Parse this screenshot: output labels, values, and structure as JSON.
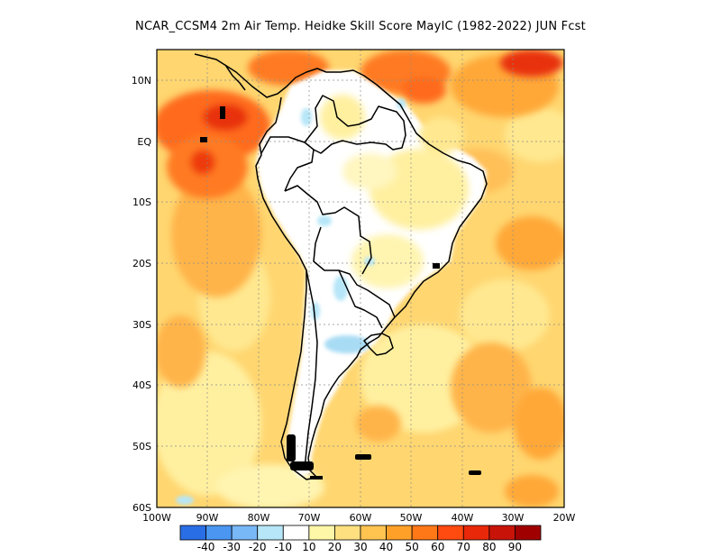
{
  "title": "NCAR_CCSM4  2m Air Temp. Heidke Skill Score MayIC (1982-2022) JUN Fcst",
  "lat_labels": [
    "10N",
    "EQ",
    "10S",
    "20S",
    "30S",
    "40S",
    "50S",
    "60S"
  ],
  "lon_labels": [
    "100W",
    "90W",
    "80W",
    "70W",
    "60W",
    "50W",
    "40W",
    "30W",
    "20W"
  ],
  "colorbar": {
    "colors": [
      "#2a6ee6",
      "#4a96f0",
      "#78b8f6",
      "#b6e6f8",
      "#ffffff",
      "#fff7a8",
      "#ffe080",
      "#ffc450",
      "#ffa028",
      "#ff7818",
      "#ff4a10",
      "#e82808",
      "#c81408",
      "#a00000"
    ],
    "labels": [
      "-40",
      "-30",
      "-20",
      "-10",
      "10",
      "20",
      "30",
      "40",
      "50",
      "60",
      "70",
      "80",
      "90"
    ]
  },
  "colors": {
    "warm_light": "#ffe27c",
    "warm_mid": "#ffb84a",
    "warm_dark": "#ff7a22",
    "hot": "#ee3a10",
    "cool": "#b6e6f8",
    "neutral": "#ffffff",
    "coast": "#000000"
  }
}
